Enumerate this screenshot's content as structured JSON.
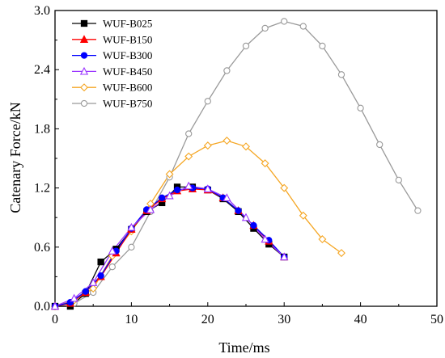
{
  "chart_data": {
    "type": "line",
    "title": "",
    "xlabel": "Time/ms",
    "ylabel": "Catenary Force/kN",
    "xlim": [
      0,
      50
    ],
    "ylim": [
      0,
      3.0
    ],
    "xticks": [
      0,
      10,
      20,
      30,
      40,
      50
    ],
    "yticks": [
      0.0,
      0.6,
      1.2,
      1.8,
      2.4,
      3.0
    ],
    "xtick_labels": [
      "0",
      "10",
      "20",
      "30",
      "40",
      "50"
    ],
    "ytick_labels": [
      "0.0",
      "0.6",
      "1.2",
      "1.8",
      "2.4",
      "3.0"
    ],
    "grid": false,
    "legend_position": "top-left",
    "series": [
      {
        "name": "WUF-B025",
        "color": "#000000",
        "marker": "square-filled",
        "x": [
          0,
          2,
          4,
          6,
          8,
          10,
          12,
          14,
          16,
          18,
          20,
          22,
          24,
          26,
          28,
          30
        ],
        "y": [
          0.0,
          0.0,
          0.13,
          0.45,
          0.58,
          0.78,
          0.96,
          1.05,
          1.21,
          1.21,
          1.18,
          1.09,
          0.96,
          0.79,
          0.63,
          0.5
        ]
      },
      {
        "name": "WUF-B150",
        "color": "#ff0000",
        "marker": "triangle-filled",
        "x": [
          0,
          2,
          4,
          6,
          8,
          10,
          12,
          14,
          16,
          18,
          20,
          22,
          24,
          26,
          28,
          30
        ],
        "y": [
          0.0,
          0.03,
          0.14,
          0.3,
          0.54,
          0.78,
          0.97,
          1.09,
          1.17,
          1.19,
          1.18,
          1.1,
          0.97,
          0.82,
          0.66,
          0.5
        ]
      },
      {
        "name": "WUF-B300",
        "color": "#0000ff",
        "marker": "circle-filled",
        "x": [
          0,
          2,
          4,
          6,
          8,
          10,
          12,
          14,
          16,
          18,
          20,
          22,
          24,
          26,
          28,
          30
        ],
        "y": [
          0.0,
          0.04,
          0.15,
          0.31,
          0.56,
          0.79,
          0.98,
          1.1,
          1.18,
          1.2,
          1.19,
          1.1,
          0.97,
          0.82,
          0.67,
          0.5
        ]
      },
      {
        "name": "WUF-B450",
        "color": "#9933ff",
        "marker": "triangle-open",
        "x": [
          0,
          2.5,
          5,
          7.5,
          10,
          12.5,
          15,
          17.5,
          20,
          22.5,
          25,
          27.5,
          30
        ],
        "y": [
          0.0,
          0.08,
          0.24,
          0.56,
          0.8,
          0.98,
          1.12,
          1.22,
          1.19,
          1.1,
          0.9,
          0.68,
          0.5
        ]
      },
      {
        "name": "WUF-B600",
        "color": "#f5a623",
        "marker": "diamond-open",
        "x": [
          0,
          2.5,
          5,
          7.5,
          10,
          12.5,
          15,
          17.5,
          20,
          22.5,
          25,
          27.5,
          30,
          32.5,
          35,
          37.5
        ],
        "y": [
          0.0,
          0.06,
          0.18,
          0.51,
          0.76,
          1.04,
          1.34,
          1.52,
          1.63,
          1.68,
          1.62,
          1.45,
          1.2,
          0.92,
          0.68,
          0.54
        ]
      },
      {
        "name": "WUF-B750",
        "color": "#999999",
        "marker": "circle-open",
        "x": [
          0,
          2.5,
          5,
          7.5,
          10,
          12.5,
          15,
          17.5,
          20,
          22.5,
          25,
          27.5,
          30,
          32.5,
          35,
          37.5,
          40,
          42.5,
          45,
          47.5
        ],
        "y": [
          0.0,
          0.03,
          0.14,
          0.4,
          0.6,
          0.96,
          1.31,
          1.75,
          2.08,
          2.39,
          2.64,
          2.82,
          2.89,
          2.84,
          2.64,
          2.35,
          2.01,
          1.64,
          1.28,
          0.97
        ]
      }
    ]
  }
}
